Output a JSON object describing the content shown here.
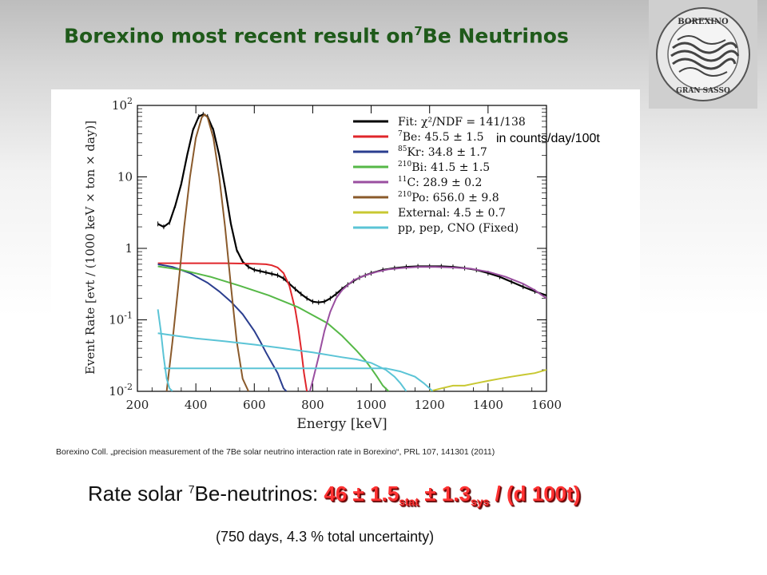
{
  "slide": {
    "title_main": "Borexino most recent result on",
    "title_sup": "7",
    "title_end": "Be Neutrinos",
    "rate_label_pre": "Rate solar ",
    "rate_label_sup": "7",
    "rate_label_post": "Be-neutrinos:  ",
    "rate_value_main": "46 ± 1.5",
    "rate_value_stat": "stat",
    "rate_value_mid": " ± 1.3",
    "rate_value_sys": "sys",
    "rate_value_end": " / (d 100t)",
    "note": "(750 days, 4.3 % total uncertainty)",
    "citation": "Borexino Coll. „precision measurement of the 7Be solar neutrino interaction rate in Borexino“, PRL 107, 141301 (2011)",
    "logo_top": "BOREXINO",
    "logo_bottom": "GRAN SASSO",
    "units_note": "in counts/day/100t"
  },
  "colors": {
    "title": "#1f5a1a",
    "rate_value": "#ff3333",
    "fit": "#000000",
    "be7": "#e0262b",
    "kr85": "#2b3e8f",
    "bi210": "#56b847",
    "c11": "#9a4fa0",
    "po210": "#8a5a2b",
    "external": "#c8c832",
    "pp_pep_cno": "#5bc4d6"
  },
  "chart_data": {
    "type": "line",
    "xlabel": "Energy [keV]",
    "ylabel": "Event Rate [evt / (1000 keV × ton × day)]",
    "xlim": [
      200,
      1600
    ],
    "ylim": [
      0.01,
      100
    ],
    "yscale": "log",
    "x_ticks": [
      200,
      400,
      600,
      800,
      1000,
      1200,
      1400,
      1600
    ],
    "y_tick_labels": [
      {
        "base": "10",
        "exp": "-2"
      },
      {
        "base": "10",
        "exp": "-1"
      },
      {
        "base": "1",
        "exp": ""
      },
      {
        "base": "10",
        "exp": ""
      },
      {
        "base": "10",
        "exp": "2"
      }
    ],
    "legend_position": "top-right",
    "series": [
      {
        "key": "fit",
        "legend": "Fit: χ²/NDF = 141/138",
        "x": [
          270,
          290,
          310,
          330,
          350,
          370,
          390,
          410,
          425,
          440,
          460,
          480,
          500,
          520,
          540,
          560,
          580,
          600,
          620,
          640,
          660,
          680,
          700,
          720,
          740,
          760,
          780,
          800,
          820,
          840,
          860,
          880,
          900,
          920,
          940,
          960,
          980,
          1000,
          1040,
          1080,
          1120,
          1160,
          1200,
          1240,
          1280,
          1320,
          1360,
          1400,
          1440,
          1480,
          1520,
          1560,
          1600
        ],
        "y": [
          2.2,
          2.0,
          2.3,
          4,
          8,
          20,
          45,
          70,
          75,
          70,
          45,
          20,
          7,
          2.2,
          0.95,
          0.65,
          0.55,
          0.5,
          0.48,
          0.46,
          0.44,
          0.42,
          0.38,
          0.32,
          0.27,
          0.23,
          0.2,
          0.18,
          0.175,
          0.18,
          0.2,
          0.23,
          0.27,
          0.31,
          0.35,
          0.39,
          0.42,
          0.45,
          0.5,
          0.53,
          0.55,
          0.56,
          0.56,
          0.56,
          0.55,
          0.53,
          0.5,
          0.45,
          0.4,
          0.34,
          0.29,
          0.25,
          0.22
        ]
      },
      {
        "key": "be7",
        "legend": "Be: 45.5 ± 1.5",
        "legend_sup": "7",
        "x": [
          270,
          300,
          400,
          500,
          600,
          640,
          660,
          680,
          700,
          720,
          740,
          750,
          760,
          770,
          780
        ],
        "y": [
          0.62,
          0.62,
          0.62,
          0.62,
          0.61,
          0.6,
          0.58,
          0.54,
          0.45,
          0.3,
          0.14,
          0.08,
          0.04,
          0.018,
          0.01
        ]
      },
      {
        "key": "kr85",
        "legend": "Kr: 34.8 ± 1.7",
        "legend_sup": "85",
        "x": [
          270,
          320,
          380,
          440,
          480,
          520,
          560,
          600,
          620,
          640,
          660,
          680,
          690,
          700,
          710
        ],
        "y": [
          0.6,
          0.55,
          0.45,
          0.33,
          0.25,
          0.18,
          0.12,
          0.07,
          0.05,
          0.035,
          0.025,
          0.018,
          0.014,
          0.011,
          0.01
        ]
      },
      {
        "key": "bi210",
        "legend": "Bi: 41.5 ± 1.5",
        "legend_sup": "210",
        "x": [
          270,
          350,
          450,
          550,
          650,
          750,
          850,
          900,
          950,
          980,
          1000,
          1020,
          1040,
          1060
        ],
        "y": [
          0.56,
          0.5,
          0.4,
          0.3,
          0.22,
          0.15,
          0.09,
          0.06,
          0.037,
          0.027,
          0.021,
          0.016,
          0.012,
          0.01
        ]
      },
      {
        "key": "c11",
        "legend": "C: 28.9 ± 0.2",
        "legend_sup": "11",
        "x": [
          790,
          800,
          820,
          840,
          860,
          880,
          900,
          940,
          980,
          1020,
          1060,
          1100,
          1160,
          1220,
          1280,
          1340,
          1400,
          1460,
          1520,
          1560,
          1600
        ],
        "y": [
          0.01,
          0.014,
          0.03,
          0.07,
          0.13,
          0.2,
          0.26,
          0.36,
          0.42,
          0.47,
          0.51,
          0.53,
          0.55,
          0.55,
          0.54,
          0.52,
          0.47,
          0.4,
          0.32,
          0.26,
          0.2
        ]
      },
      {
        "key": "po210",
        "legend": "Po: 656.0 ± 9.8",
        "legend_sup": "210",
        "x": [
          300,
          320,
          340,
          360,
          380,
          400,
          420,
          430,
          440,
          460,
          480,
          500,
          520,
          540,
          560,
          580
        ],
        "y": [
          0.01,
          0.05,
          0.3,
          2,
          10,
          35,
          68,
          75,
          68,
          35,
          10,
          2,
          0.3,
          0.05,
          0.015,
          0.01
        ]
      },
      {
        "key": "external",
        "legend": "External: 4.5 ± 0.7",
        "x": [
          1200,
          1240,
          1280,
          1320,
          1360,
          1400,
          1440,
          1480,
          1520,
          1560,
          1600
        ],
        "y": [
          0.01,
          0.011,
          0.012,
          0.012,
          0.013,
          0.014,
          0.015,
          0.016,
          0.017,
          0.018,
          0.02
        ]
      },
      {
        "key": "pp_pep_cno",
        "legend": "pp, pep, CNO (Fixed)",
        "x": [
          270,
          280,
          290,
          300,
          310,
          320
        ],
        "y": [
          0.14,
          0.07,
          0.03,
          0.015,
          0.011,
          0.01
        ],
        "x2": [
          270,
          330,
          400,
          500,
          600,
          700,
          800,
          900,
          950,
          1000,
          1050,
          1080,
          1100,
          1120
        ],
        "y2": [
          0.065,
          0.06,
          0.055,
          0.05,
          0.045,
          0.04,
          0.035,
          0.03,
          0.028,
          0.025,
          0.02,
          0.016,
          0.013,
          0.01
        ],
        "x3": [
          290,
          400,
          500,
          600,
          700,
          800,
          900,
          1000,
          1050,
          1100,
          1150,
          1180,
          1200,
          1210
        ],
        "y3": [
          0.021,
          0.021,
          0.021,
          0.021,
          0.021,
          0.021,
          0.021,
          0.021,
          0.021,
          0.019,
          0.016,
          0.013,
          0.011,
          0.01
        ]
      }
    ]
  }
}
